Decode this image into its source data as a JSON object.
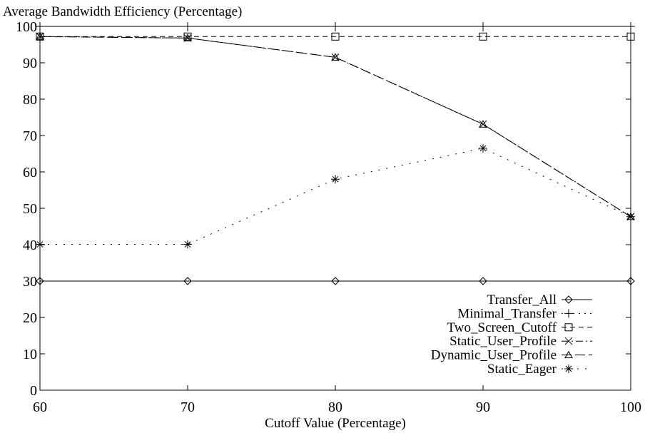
{
  "chart_data": {
    "type": "line",
    "title": "Average Bandwidth Efficiency (Percentage)",
    "xlabel": "Cutoff Value (Percentage)",
    "ylabel": "",
    "x": [
      60,
      70,
      80,
      90,
      100
    ],
    "xlim": [
      60,
      100
    ],
    "ylim": [
      0,
      100
    ],
    "xticks": [
      "60",
      "70",
      "80",
      "90",
      "100"
    ],
    "yticks": [
      "0",
      "10",
      "20",
      "30",
      "40",
      "50",
      "60",
      "70",
      "80",
      "90",
      "100"
    ],
    "grid": false,
    "legend_position": "bottom-right",
    "series": [
      {
        "name": "Transfer_All",
        "values": [
          30,
          30,
          30,
          30,
          30
        ],
        "marker": "diamond",
        "dash": "solid"
      },
      {
        "name": "Minimal_Transfer",
        "values": [
          100,
          100,
          100,
          100,
          100
        ],
        "marker": "plus",
        "dash": "dotted"
      },
      {
        "name": "Two_Screen_Cutoff",
        "values": [
          97.2,
          97.2,
          97.2,
          97.2,
          97.2
        ],
        "marker": "square",
        "dash": "dashed"
      },
      {
        "name": "Static_User_Profile",
        "values": [
          97.2,
          96.8,
          91.5,
          73.1,
          47.7
        ],
        "marker": "cross",
        "dash": "dashdot"
      },
      {
        "name": "Dynamic_User_Profile",
        "values": [
          97.2,
          96.8,
          91.5,
          73.1,
          47.7
        ],
        "marker": "triangle",
        "dash": "longdash"
      },
      {
        "name": "Static_Eager",
        "values": [
          40.1,
          40.1,
          58,
          66.5,
          47.7
        ],
        "marker": "star",
        "dash": "sparse-dot"
      }
    ]
  }
}
